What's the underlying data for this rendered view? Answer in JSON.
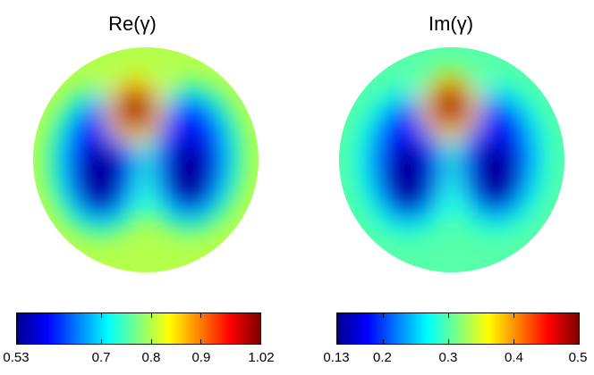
{
  "chart_data": [
    {
      "type": "heatmap",
      "title": "Re(γ)",
      "colormap": "jet",
      "colorbar": {
        "min": 0.53,
        "max": 1.02,
        "ticks": [
          "0.53",
          "0.7",
          "0.8",
          "0.9",
          "1.02"
        ],
        "tick_values": [
          0.53,
          0.7,
          0.8,
          0.9,
          1.02
        ]
      },
      "background_value": 0.8,
      "features": [
        {
          "kind": "high",
          "location": "top-center",
          "value": 1.02
        },
        {
          "kind": "low",
          "location": "left-lobe",
          "value": 0.53
        },
        {
          "kind": "low",
          "location": "right-lobe",
          "value": 0.53
        }
      ]
    },
    {
      "type": "heatmap",
      "title": "Im(γ)",
      "colormap": "jet",
      "colorbar": {
        "min": 0.13,
        "max": 0.5,
        "ticks": [
          "0.13",
          "0.2",
          "0.3",
          "0.4",
          "0.5"
        ],
        "tick_values": [
          0.13,
          0.2,
          0.3,
          0.4,
          0.5
        ]
      },
      "background_value": 0.3,
      "features": [
        {
          "kind": "high",
          "location": "top-center",
          "value": 0.5
        },
        {
          "kind": "low",
          "location": "left-lobe",
          "value": 0.13
        },
        {
          "kind": "low",
          "location": "right-lobe",
          "value": 0.13
        }
      ]
    }
  ],
  "colors": {
    "jet": [
      "#00008f",
      "#0000ff",
      "#0080ff",
      "#00ffff",
      "#80ff80",
      "#ffff00",
      "#ff8000",
      "#ff0000",
      "#800000"
    ]
  }
}
